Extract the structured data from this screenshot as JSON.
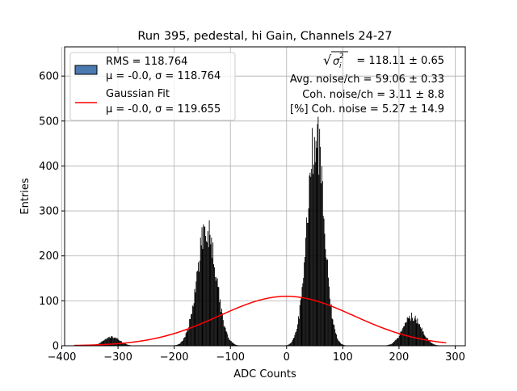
{
  "chart_data": {
    "type": "histogram",
    "title": "Run 395, pedestal, hi Gain, Channels 24-27",
    "xlabel": "ADC Counts",
    "ylabel": "Entries",
    "xlim": [
      -395,
      318
    ],
    "ylim": [
      0,
      665
    ],
    "xticks": [
      -400,
      -300,
      -200,
      -100,
      0,
      100,
      200,
      300
    ],
    "yticks": [
      0,
      100,
      200,
      300,
      400,
      500,
      600
    ],
    "grid": true,
    "histogram": {
      "name": "RMS = 118.764",
      "legend_line2": "μ = -0.0, σ = 118.764",
      "color": "#000000",
      "legend_color": "#4a7ab0",
      "peaks": [
        {
          "center": -312,
          "sigma": 14,
          "amplitude": 20
        },
        {
          "center": -143,
          "sigma": 17,
          "amplitude": 258
        },
        {
          "center": 51,
          "sigma": 15,
          "amplitude": 470
        },
        {
          "center": 223,
          "sigma": 16,
          "amplitude": 65
        }
      ]
    },
    "gaussian_fit": {
      "name": "Gaussian Fit",
      "legend_line2": "μ = -0.0, σ = 119.655",
      "mu": -0.0,
      "sigma": 119.655,
      "amplitude": 110,
      "x_range": [
        -378,
        285
      ],
      "color": "#ff0000"
    },
    "annotations": [
      {
        "pre": "= 118.11 ± 0.65",
        "math": true
      },
      {
        "pre": "Avg. noise/ch = 59.06 ± 0.33"
      },
      {
        "pre": "Coh. noise/ch = 3.11 ± 8.8"
      },
      {
        "pre": "[%] Coh. noise = 5.27 ± 14.9"
      }
    ],
    "legend_position": "top-left"
  }
}
